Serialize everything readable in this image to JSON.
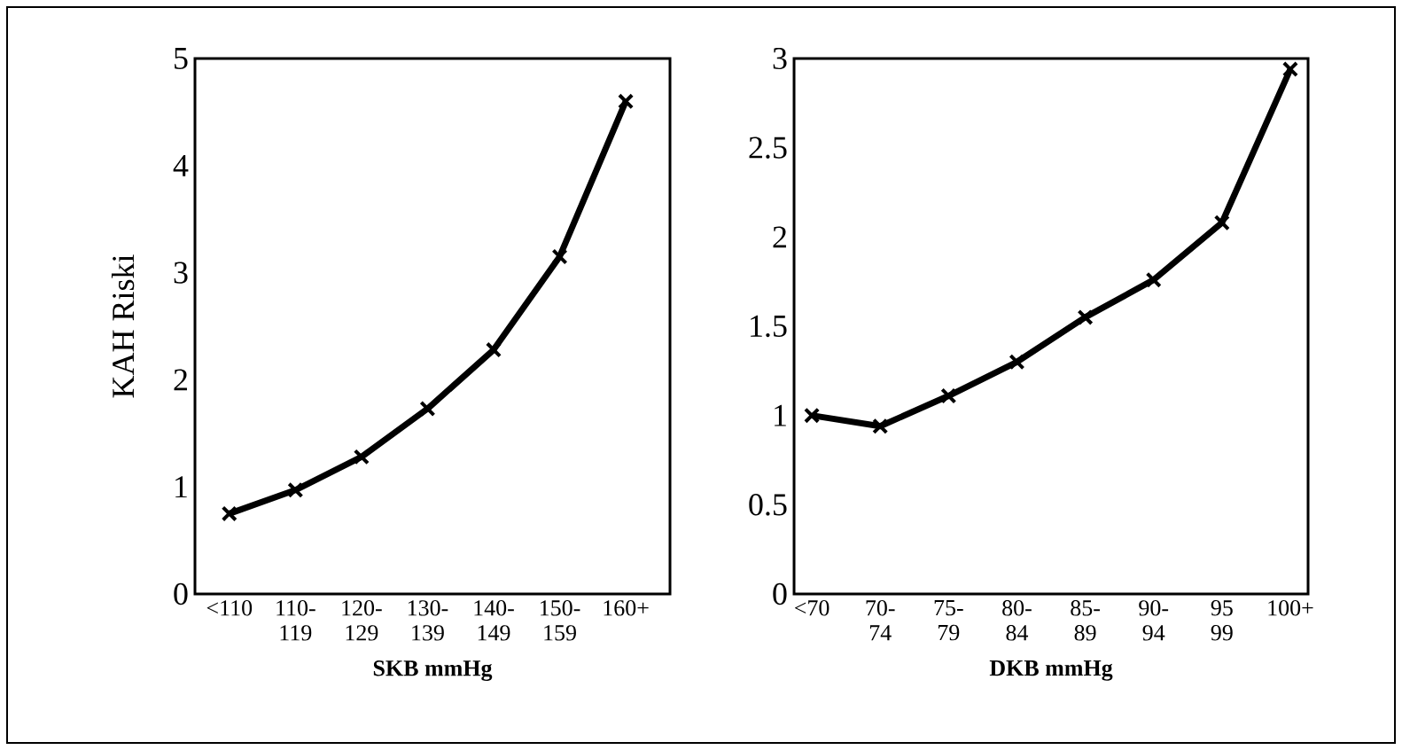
{
  "chart_data": [
    {
      "type": "line",
      "categories": [
        "<110",
        "110-119",
        "120-129",
        "130-139",
        "140-149",
        "150-159",
        "160+"
      ],
      "values": [
        0.75,
        0.97,
        1.28,
        1.73,
        2.28,
        3.15,
        4.6
      ],
      "color": "#000000",
      "marker": "cross",
      "line_style": "solid",
      "xlabel": "SKB mmHg",
      "ylabel": "KAH Riski",
      "ylim": [
        0,
        5
      ],
      "yticks": [
        0,
        1,
        2,
        3,
        4,
        5
      ]
    },
    {
      "type": "line",
      "categories": [
        "<70",
        "70-74",
        "75-79",
        "80-84",
        "85-89",
        "90-94",
        "95 99",
        "100+"
      ],
      "values": [
        1.0,
        0.94,
        1.11,
        1.3,
        1.55,
        1.76,
        2.08,
        2.94
      ],
      "color": "#000000",
      "marker": "cross",
      "line_style": "solid",
      "xlabel": "DKB mmHg",
      "ylim": [
        0,
        3
      ],
      "yticks": [
        0,
        0.5,
        1,
        1.5,
        2,
        2.5,
        3
      ]
    }
  ]
}
